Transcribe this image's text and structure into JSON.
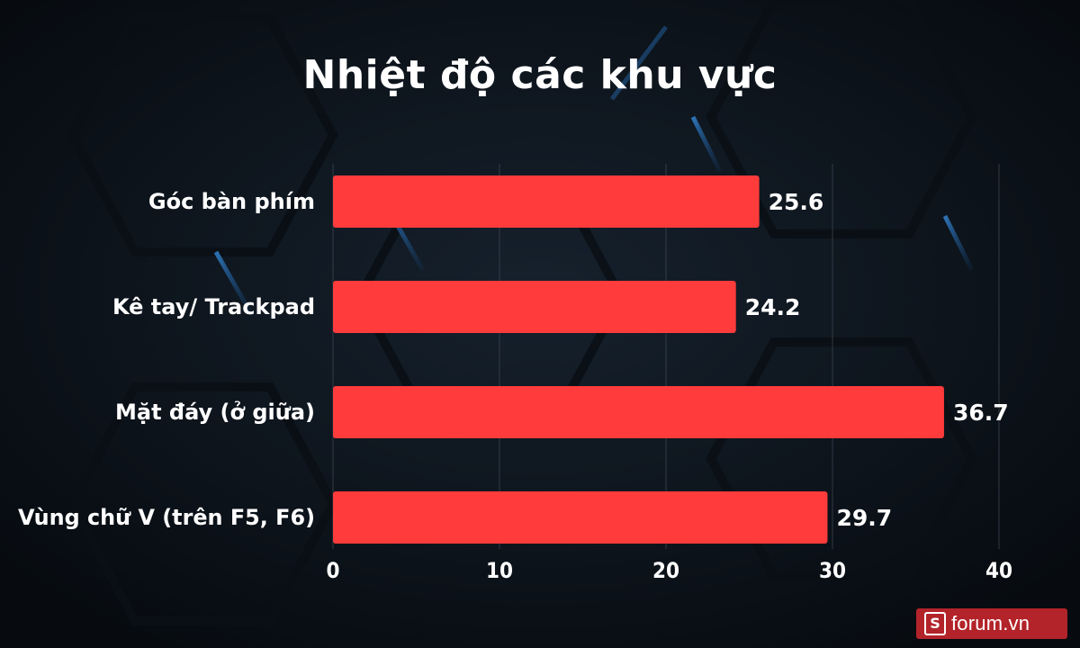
{
  "chart_data": {
    "type": "bar",
    "orientation": "horizontal",
    "title": "Nhiệt độ các khu vực",
    "categories": [
      "Góc bàn phím",
      "Kê tay/ Trackpad",
      "Mặt đáy (ở giữa)",
      "Vùng chữ V (trên F5, F6)"
    ],
    "values": [
      25.6,
      24.2,
      36.7,
      29.7
    ],
    "xlim": [
      0,
      40
    ],
    "x_ticks": [
      "0",
      "10",
      "20",
      "30",
      "40"
    ],
    "grid": true,
    "legend": "none",
    "bar_color": "#ff3b3b",
    "text_color": "#ffffff"
  },
  "watermark": {
    "logo_letter": "S",
    "text": "forum.vn"
  },
  "colors": {
    "background": "#0b1119",
    "accent_glow": "#2f8fe0",
    "watermark_bg": "#b3232a"
  }
}
